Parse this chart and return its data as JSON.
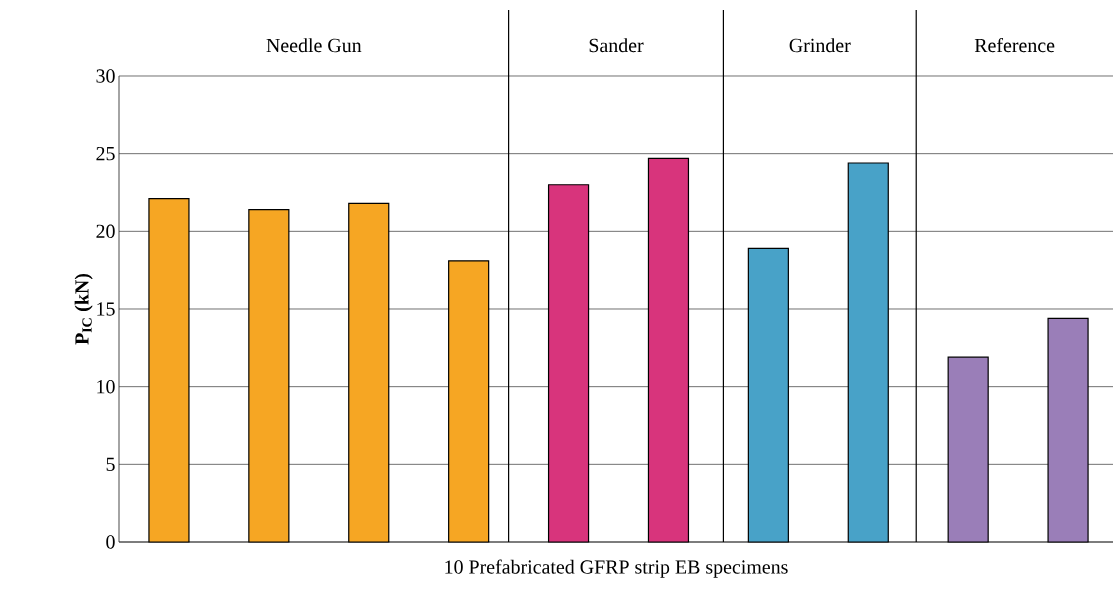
{
  "chart_data": {
    "type": "bar",
    "xlabel": "10 Prefabricated GFRP strip EB specimens",
    "ylabel": "P$_{IC}$ (kN)",
    "categories": [
      null,
      null,
      null,
      null,
      null,
      null,
      null,
      null,
      null,
      null
    ],
    "values": [
      22.1,
      21.4,
      21.8,
      18.1,
      23.0,
      24.7,
      18.9,
      24.4,
      11.9,
      14.4
    ],
    "colors": [
      "#f6a623",
      "#f6a623",
      "#f6a623",
      "#f6a623",
      "#d8347c",
      "#d8347c",
      "#48a2c8",
      "#48a2c8",
      "#9a7eb8",
      "#9a7eb8"
    ],
    "ylim": [
      0,
      30
    ],
    "yticks": [
      0,
      5,
      10,
      15,
      20,
      25,
      30
    ],
    "grid": "y",
    "annotations": [
      "Needle Gun",
      "Sander",
      "Grinder",
      "Reference"
    ]
  }
}
